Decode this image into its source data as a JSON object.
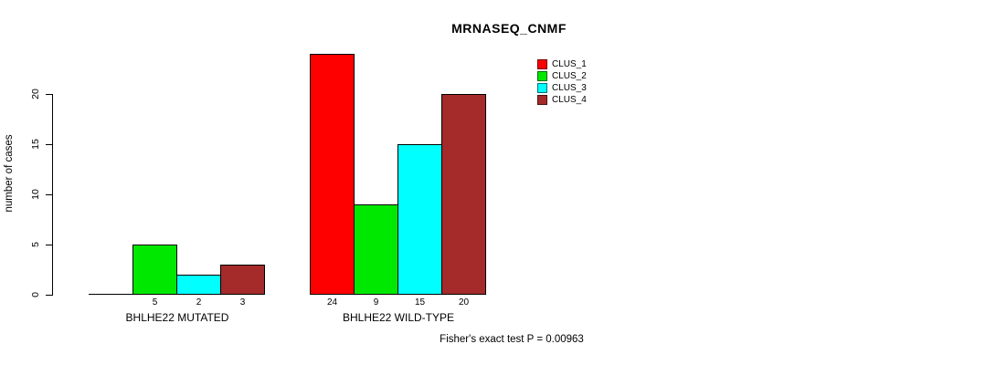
{
  "chart_data": {
    "type": "bar",
    "title": "MRNASEQ_CNMF",
    "ylabel": "number of cases",
    "xlabel": "",
    "ylim": [
      0,
      24
    ],
    "yticks": [
      0,
      5,
      10,
      15,
      20
    ],
    "grid": false,
    "legend_position": "top-right",
    "series": [
      {
        "name": "CLUS_1",
        "color": "#FF0000"
      },
      {
        "name": "CLUS_2",
        "color": "#00E800"
      },
      {
        "name": "CLUS_3",
        "color": "#00FFFF"
      },
      {
        "name": "CLUS_4",
        "color": "#A52A2A"
      }
    ],
    "groups": [
      {
        "label": "BHLHE22 MUTATED",
        "values": [
          0,
          5,
          2,
          3
        ],
        "bar_labels": [
          "",
          "5",
          "2",
          "3"
        ]
      },
      {
        "label": "BHLHE22 WILD-TYPE",
        "values": [
          24,
          9,
          15,
          20
        ],
        "bar_labels": [
          "24",
          "9",
          "15",
          "20"
        ]
      }
    ],
    "annotation": "Fisher's exact test P = 0.00963"
  }
}
